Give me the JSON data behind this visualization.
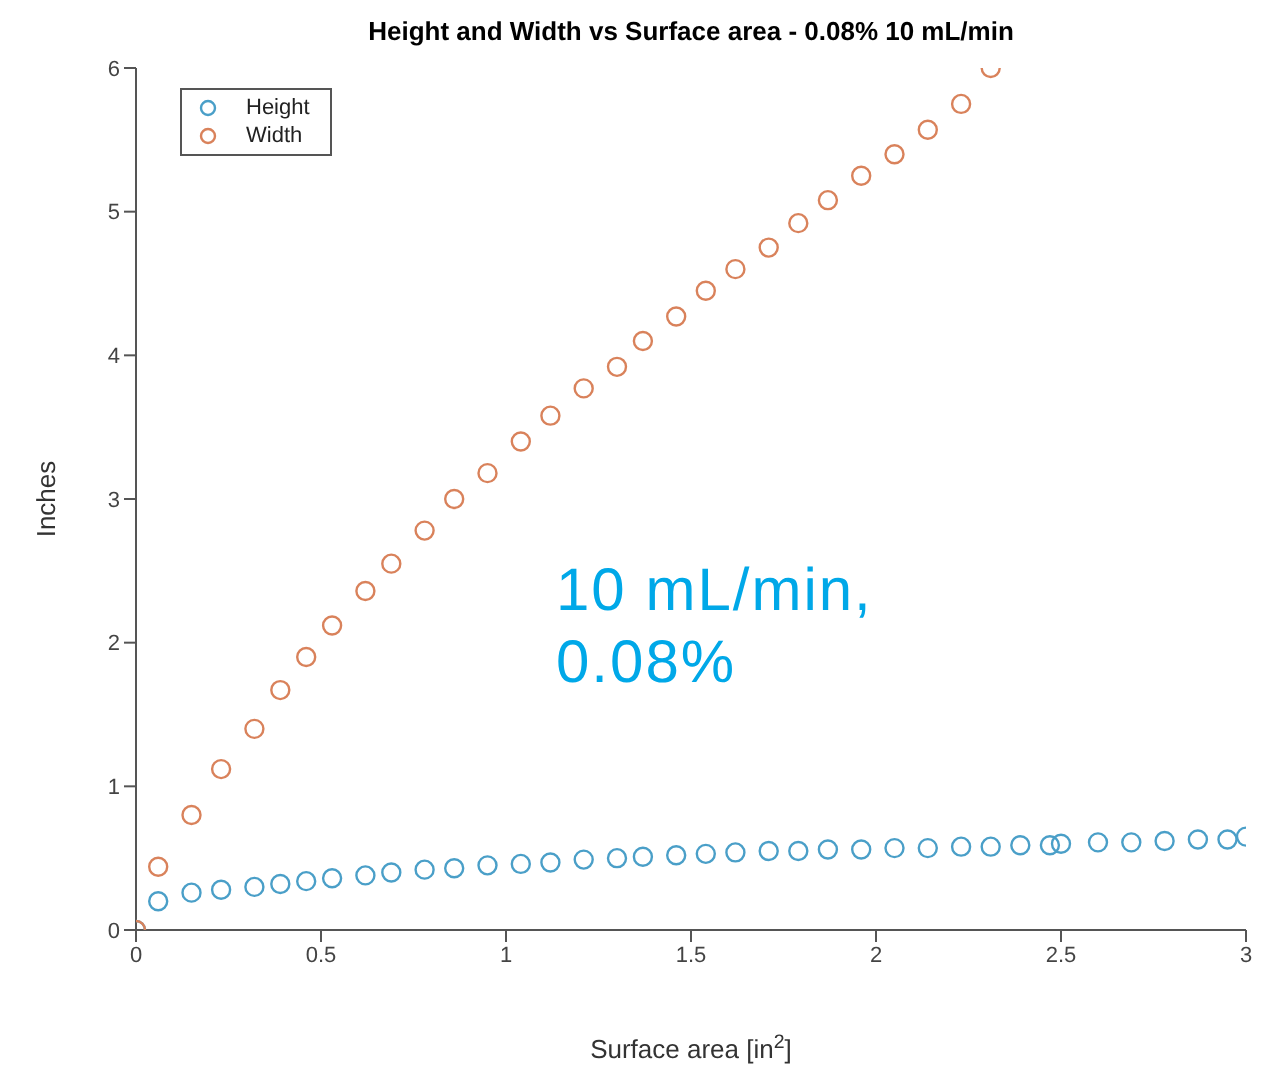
{
  "chart_data": {
    "type": "scatter",
    "title": "Height and Width vs Surface area - 0.08% 10 mL/min",
    "xlabel": "Surface area [in$^{2}$]",
    "ylabel": "Inches",
    "annotations": [
      "10 mL/min, 0.08%"
    ],
    "xlim": [
      0,
      3
    ],
    "xticks": [
      0,
      0.5,
      1,
      1.5,
      2,
      2.5,
      3
    ],
    "ylim": [
      0,
      6
    ],
    "yticks": [
      0,
      1,
      2,
      3,
      4,
      5,
      6
    ],
    "grid": false,
    "legend": "top left",
    "marker": "circle",
    "series": [
      {
        "name": "Height",
        "color": "#4a9fc8",
        "x": [
          0,
          0.06,
          0.15,
          0.23,
          0.32,
          0.39,
          0.46,
          0.53,
          0.62,
          0.69,
          0.78,
          0.86,
          0.95,
          1.04,
          1.12,
          1.21,
          1.3,
          1.37,
          1.46,
          1.54,
          1.62,
          1.71,
          1.79,
          1.87,
          1.96,
          2.05,
          2.14,
          2.23,
          2.31,
          2.39,
          2.47,
          2.5,
          2.6,
          2.69,
          2.78,
          2.87,
          2.95,
          3.0
        ],
        "values": [
          0,
          0.2,
          0.26,
          0.28,
          0.3,
          0.32,
          0.34,
          0.36,
          0.38,
          0.4,
          0.42,
          0.43,
          0.45,
          0.46,
          0.47,
          0.49,
          0.5,
          0.51,
          0.52,
          0.53,
          0.54,
          0.55,
          0.55,
          0.56,
          0.56,
          0.57,
          0.57,
          0.58,
          0.58,
          0.59,
          0.59,
          0.6,
          0.61,
          0.61,
          0.62,
          0.63,
          0.63,
          0.65
        ]
      },
      {
        "name": "Width",
        "color": "#d9825b",
        "x": [
          0,
          0.06,
          0.15,
          0.23,
          0.32,
          0.39,
          0.46,
          0.53,
          0.62,
          0.69,
          0.78,
          0.86,
          0.95,
          1.04,
          1.12,
          1.21,
          1.3,
          1.37,
          1.46,
          1.54,
          1.62,
          1.71,
          1.79,
          1.87,
          1.96,
          2.05,
          2.14,
          2.23,
          2.31
        ],
        "values": [
          0,
          0.44,
          0.8,
          1.12,
          1.4,
          1.67,
          1.9,
          2.12,
          2.36,
          2.55,
          2.78,
          3.0,
          3.18,
          3.4,
          3.58,
          3.77,
          3.92,
          4.1,
          4.27,
          4.45,
          4.6,
          4.75,
          4.92,
          5.08,
          5.25,
          5.4,
          5.57,
          5.75,
          6.0
        ]
      }
    ]
  }
}
